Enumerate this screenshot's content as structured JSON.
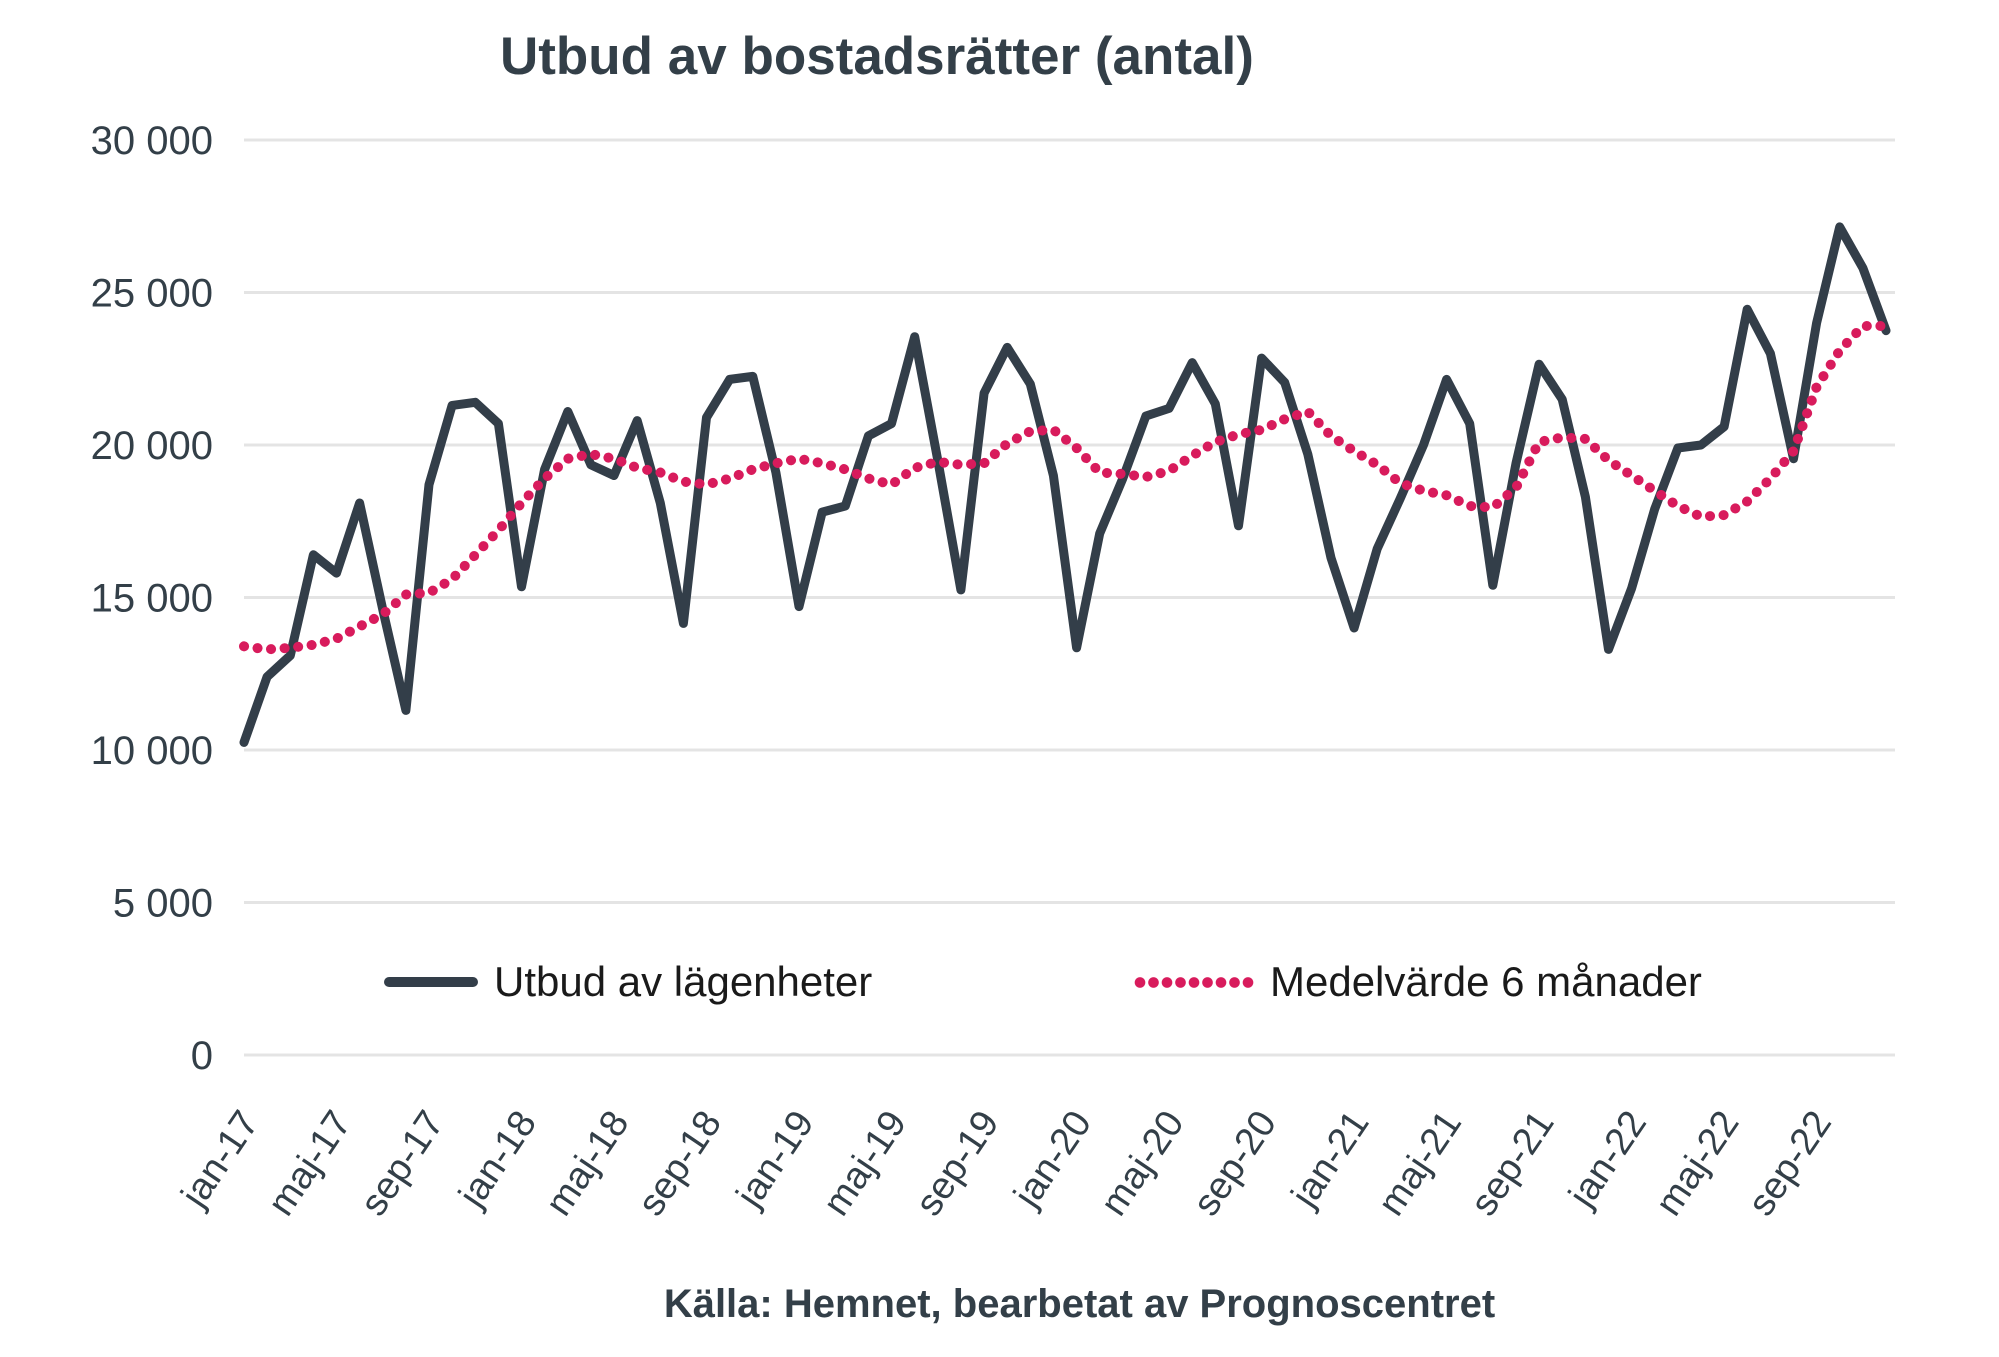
{
  "title": "Utbud av bostadsrätter (antal)",
  "source_note": "Källa: Hemnet, bearbetat av Prognoscentret",
  "legend": {
    "series1": "Utbud av lägenheter",
    "series2": "Medelvärde 6 månader"
  },
  "colors": {
    "line": "#333e49",
    "average": "#d81b5c",
    "grid": "#e4e4e4",
    "tick_text": "#333f48",
    "title_text": "#333f48",
    "legend_text": "#1a1a1a",
    "background": "#ffffff"
  },
  "chart_data": {
    "type": "line",
    "title": "Utbud av bostadsrätter (antal)",
    "grid": "horizontal",
    "legend_position": "bottom-inside",
    "ylim": [
      0,
      30000
    ],
    "ytick_step": 5000,
    "ytick_labels": [
      "0",
      "5 000",
      "10 000",
      "15 000",
      "20 000",
      "25 000",
      "30 000"
    ],
    "x_tick_every": 4,
    "x_tick_labels": [
      "jan-17",
      "maj-17",
      "sep-17",
      "jan-18",
      "maj-18",
      "sep-18",
      "jan-19",
      "maj-19",
      "sep-19",
      "jan-20",
      "maj-20",
      "sep-20",
      "jan-21",
      "maj-21",
      "sep-21",
      "jan-22",
      "maj-22",
      "sep-22"
    ],
    "x": [
      "jan-17",
      "feb-17",
      "mar-17",
      "apr-17",
      "maj-17",
      "jun-17",
      "jul-17",
      "aug-17",
      "sep-17",
      "okt-17",
      "nov-17",
      "dec-17",
      "jan-18",
      "feb-18",
      "mar-18",
      "apr-18",
      "maj-18",
      "jun-18",
      "jul-18",
      "aug-18",
      "sep-18",
      "okt-18",
      "nov-18",
      "dec-18",
      "jan-19",
      "feb-19",
      "mar-19",
      "apr-19",
      "maj-19",
      "jun-19",
      "jul-19",
      "aug-19",
      "sep-19",
      "okt-19",
      "nov-19",
      "dec-19",
      "jan-20",
      "feb-20",
      "mar-20",
      "apr-20",
      "maj-20",
      "jun-20",
      "jul-20",
      "aug-20",
      "sep-20",
      "okt-20",
      "nov-20",
      "dec-20",
      "jan-21",
      "feb-21",
      "mar-21",
      "apr-21",
      "maj-21",
      "jun-21",
      "jul-21",
      "aug-21",
      "sep-21",
      "okt-21",
      "nov-21",
      "dec-21",
      "jan-22",
      "feb-22",
      "mar-22",
      "apr-22",
      "maj-22",
      "jun-22",
      "jul-22",
      "aug-22",
      "sep-22",
      "okt-22",
      "nov-22",
      "dec-22"
    ],
    "series": [
      {
        "name": "Utbud av lägenheter",
        "style": "solid",
        "color": "#333e49",
        "values": [
          10250,
          12400,
          13100,
          16400,
          15800,
          18100,
          14600,
          11300,
          18700,
          21300,
          21400,
          20700,
          15350,
          19200,
          21100,
          19350,
          19000,
          20800,
          18100,
          14150,
          20900,
          22150,
          22250,
          19100,
          14700,
          17800,
          18000,
          20300,
          20700,
          23550,
          19500,
          15250,
          21700,
          23200,
          22000,
          19000,
          13350,
          17100,
          18900,
          20950,
          21200,
          22700,
          21350,
          17350,
          22850,
          22050,
          19700,
          16300,
          14000,
          16600,
          18250,
          20000,
          22150,
          20700,
          15400,
          19400,
          22650,
          21500,
          18300,
          13300,
          15300,
          17900,
          19900,
          20000,
          20600,
          24450,
          23000,
          19550,
          24000,
          27150,
          25800,
          23750
        ]
      },
      {
        "name": "Medelvärde 6 månader",
        "style": "dotted",
        "color": "#d81b5c",
        "values": [
          13400,
          13300,
          13350,
          13450,
          13650,
          14050,
          14450,
          15100,
          15150,
          15600,
          16400,
          17200,
          18100,
          18900,
          19550,
          19700,
          19550,
          19250,
          19100,
          18800,
          18700,
          18900,
          19200,
          19400,
          19550,
          19400,
          19200,
          18900,
          18700,
          19250,
          19450,
          19350,
          19400,
          20050,
          20450,
          20500,
          19900,
          19100,
          19050,
          18950,
          19150,
          19650,
          20100,
          20350,
          20500,
          20850,
          21100,
          20300,
          19800,
          19350,
          18750,
          18500,
          18350,
          18000,
          17950,
          18600,
          20100,
          20250,
          20200,
          19500,
          19000,
          18500,
          18000,
          17650,
          17700,
          18150,
          18900,
          19800,
          21900,
          23100,
          23900,
          23900
        ]
      }
    ]
  }
}
